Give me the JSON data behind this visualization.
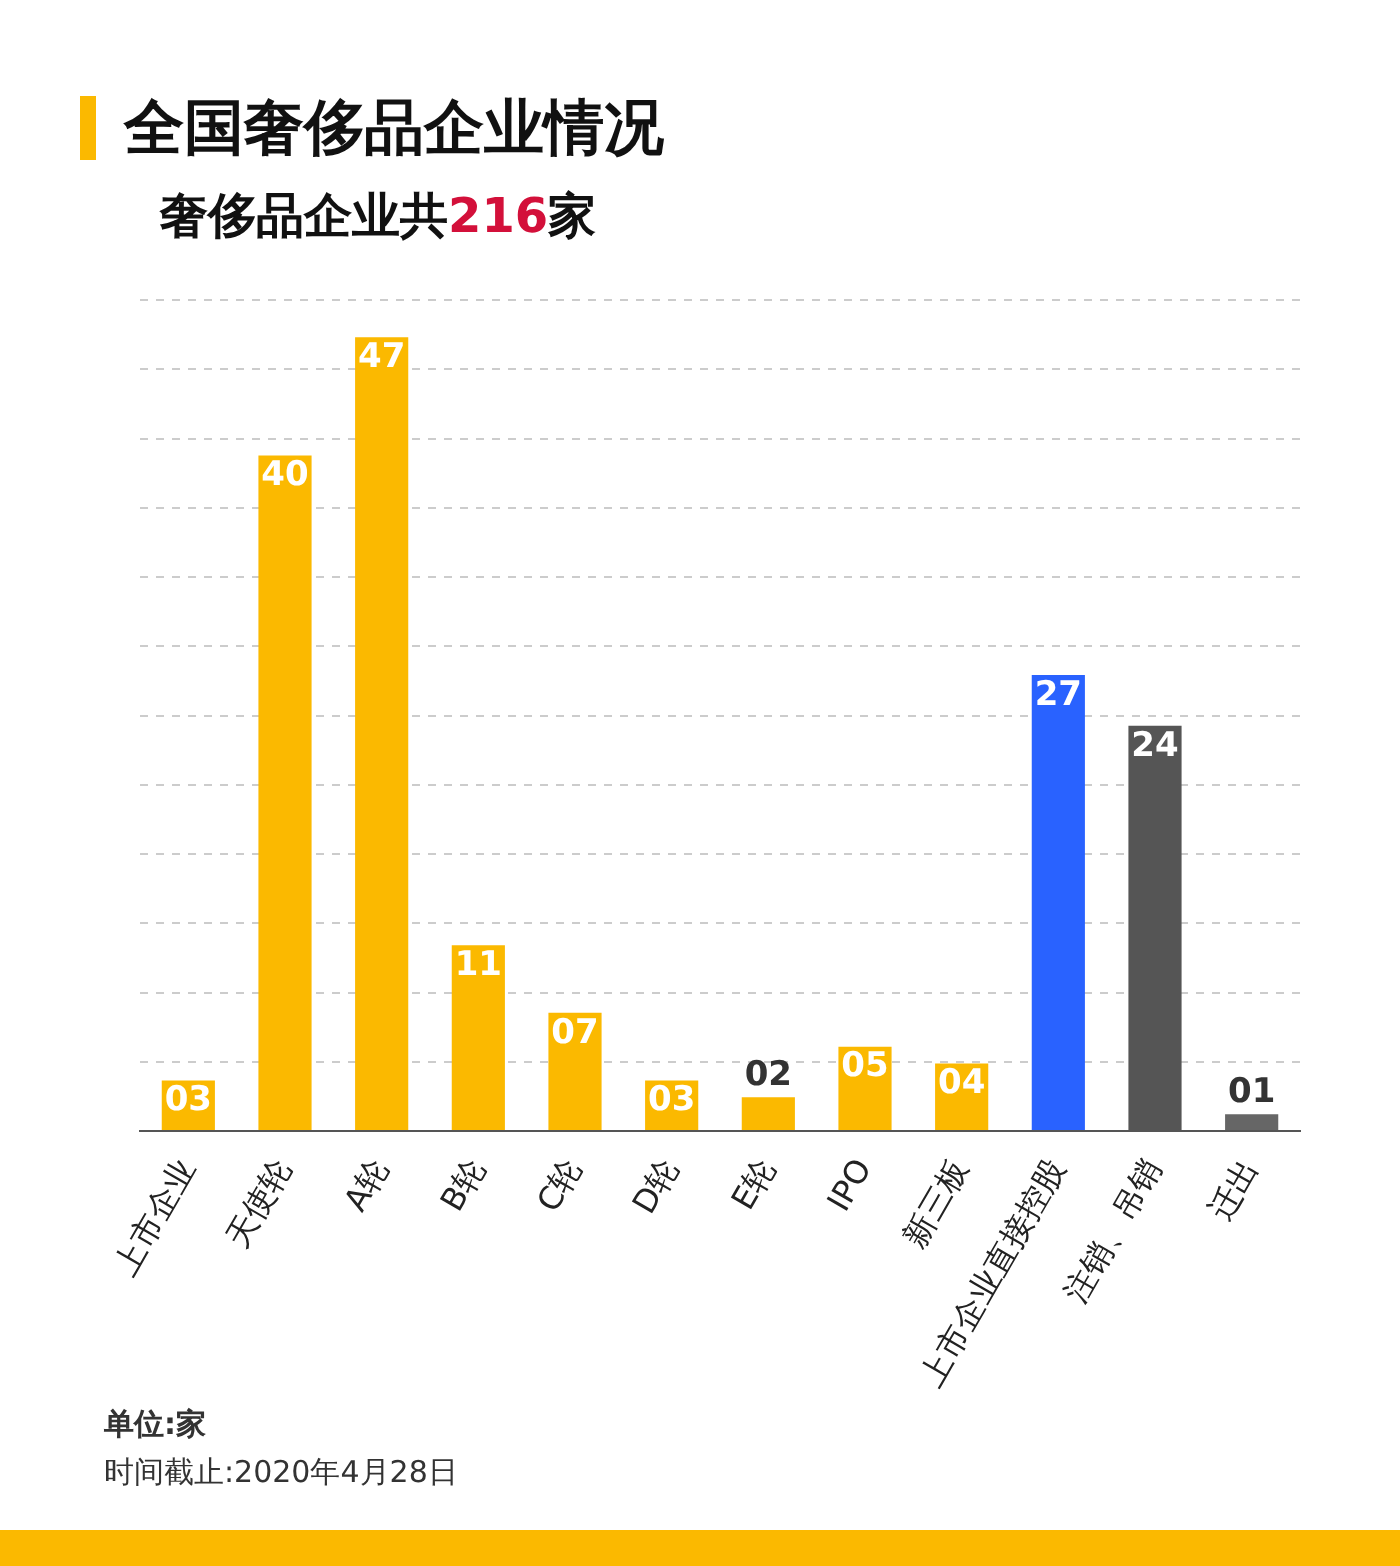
{
  "chart_data": {
    "type": "bar",
    "title": "全国奢侈品企业情况",
    "subtitle": "奢侈品企业共216家",
    "categories": [
      "上市企业",
      "天使轮",
      "A轮",
      "B轮",
      "C轮",
      "D轮",
      "E轮",
      "IPO",
      "新三板",
      "上市企业直接控股",
      "注销、吊销",
      "迁出"
    ],
    "values": [
      3,
      40,
      47,
      11,
      7,
      3,
      2,
      5,
      4,
      27,
      24,
      1
    ],
    "value_labels": [
      "03",
      "40",
      "47",
      "11",
      "07",
      "03",
      "02",
      "05",
      "04",
      "27",
      "24",
      "01"
    ],
    "colors": [
      "#fbb900",
      "#fbb900",
      "#fbb900",
      "#fbb900",
      "#fbb900",
      "#fbb900",
      "#fbb900",
      "#fbb900",
      "#fbb900",
      "#2962ff",
      "#555555",
      "#666666"
    ],
    "ylim": [
      0,
      49.2
    ],
    "yticks": [
      {
        "value": 0,
        "label": null
      },
      {
        "value": 4.1,
        "label": null
      },
      {
        "value": 8.2,
        "label": null
      },
      {
        "value": 12.3,
        "label": null
      },
      {
        "value": 16.4,
        "label": null
      },
      {
        "value": 20.5,
        "label": null
      },
      {
        "value": 24.6,
        "label": null
      },
      {
        "value": 28.7,
        "label": null
      },
      {
        "value": 32.8,
        "label": null
      },
      {
        "value": 36.9,
        "label": null
      },
      {
        "value": 41,
        "label": null
      },
      {
        "value": 45.1,
        "label": null
      },
      {
        "value": 49.2,
        "label": null
      }
    ],
    "grid": "y",
    "tick_labels": "x",
    "legend": false,
    "annotations": [
      "单位:家",
      "时间截止:2020年4月28日"
    ]
  }
}
